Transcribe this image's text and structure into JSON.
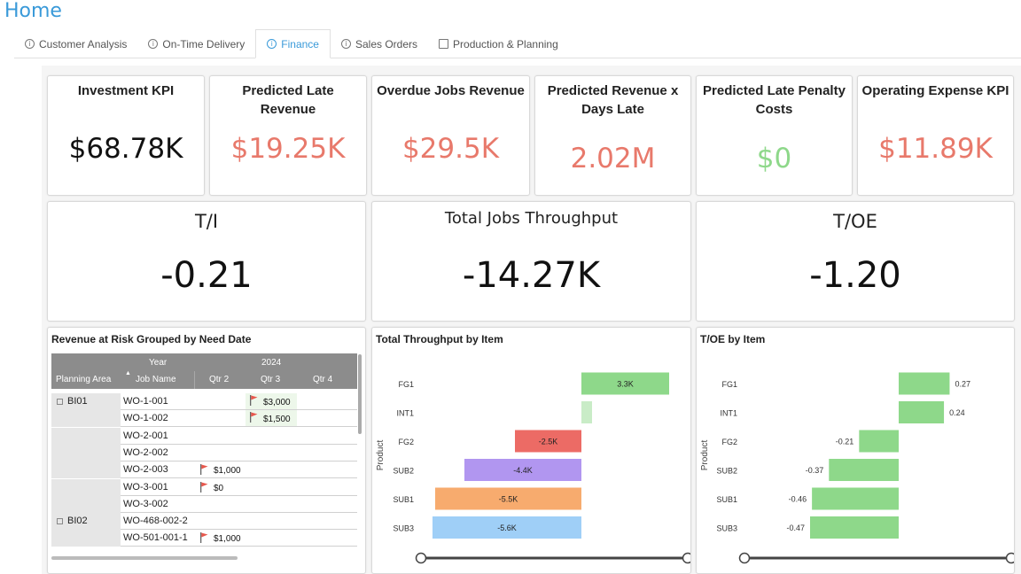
{
  "header": {
    "title": "Home"
  },
  "tabs": [
    {
      "label": "Customer Analysis",
      "icon": "info-icon",
      "active": false
    },
    {
      "label": "On-Time Delivery",
      "icon": "info-icon",
      "active": false
    },
    {
      "label": "Finance",
      "icon": "info-icon",
      "active": true
    },
    {
      "label": "Sales Orders",
      "icon": "info-icon",
      "active": false
    },
    {
      "label": "Production & Planning",
      "icon": "document-icon",
      "active": false
    }
  ],
  "kpis": {
    "investment": {
      "title": "Investment KPI",
      "value": "$68.78K",
      "color": "#111111"
    },
    "predicted_late_revenue": {
      "title": "Predicted Late Revenue",
      "value": "$19.25K",
      "color": "#e8796b"
    },
    "overdue_jobs_revenue": {
      "title": "Overdue Jobs Revenue",
      "value": "$29.5K",
      "color": "#e8796b"
    },
    "predicted_revenue_days_late": {
      "title": "Predicted Revenue x Days Late",
      "value": "2.02M",
      "color": "#e8796b"
    },
    "predicted_late_penalty": {
      "title": "Predicted Late Penalty Costs",
      "value": "$0",
      "color": "#8ed88a"
    },
    "operating_expense": {
      "title": "Operating Expense KPI",
      "value": "$11.89K",
      "color": "#e8796b"
    }
  },
  "big_kpis": {
    "ti": {
      "title": "T/I",
      "value": "-0.21"
    },
    "throughput": {
      "title": "Total Jobs Throughput",
      "value": "-14.27K"
    },
    "toe": {
      "title": "T/OE",
      "value": "-1.20"
    }
  },
  "matrix": {
    "title": "Revenue at Risk Grouped by Need Date",
    "headers": {
      "year_label": "Year",
      "year_value": "2024",
      "planning_area": "Planning Area",
      "job_name": "Job Name",
      "qtr2": "Qtr 2",
      "qtr3": "Qtr 3",
      "qtr4": "Qtr 4"
    },
    "groups": [
      {
        "area": "BI01",
        "expander": "⊟"
      },
      {
        "area": "BI02",
        "expander": "⊟"
      }
    ],
    "rows": [
      {
        "job": "WO-1-001",
        "q2": "",
        "q3": "$3,000",
        "q3_flag": true,
        "q2_flag": false
      },
      {
        "job": "WO-1-002",
        "q2": "",
        "q3": "$1,500",
        "q3_flag": true,
        "q2_flag": false
      },
      {
        "job": "WO-2-001",
        "q2": "",
        "q3": "",
        "q3_flag": false,
        "q2_flag": false
      },
      {
        "job": "WO-2-002",
        "q2": "",
        "q3": "",
        "q3_flag": false,
        "q2_flag": false
      },
      {
        "job": "WO-2-003",
        "q2": "$1,000",
        "q3": "",
        "q3_flag": false,
        "q2_flag": true
      },
      {
        "job": "WO-3-001",
        "q2": "$0",
        "q3": "",
        "q3_flag": false,
        "q2_flag": true
      },
      {
        "job": "WO-3-002",
        "q2": "",
        "q3": "",
        "q3_flag": false,
        "q2_flag": false
      },
      {
        "job": "WO-468-002-2",
        "q2": "",
        "q3": "",
        "q3_flag": false,
        "q2_flag": false
      },
      {
        "job": "WO-501-001-1",
        "q2": "$1,000",
        "q3": "",
        "q3_flag": false,
        "q2_flag": true
      }
    ]
  },
  "chart_data": [
    {
      "type": "bar",
      "orientation": "horizontal",
      "title": "Total Throughput by Item",
      "ylabel": "Product",
      "categories": [
        "FG1",
        "INT1",
        "FG2",
        "SUB2",
        "SUB1",
        "SUB3"
      ],
      "values": [
        3.3,
        0.4,
        -2.5,
        -4.4,
        -5.5,
        -5.6
      ],
      "labels": [
        "3.3K",
        "",
        "-2.5K",
        "-4.4K",
        "-5.5K",
        "-5.6K"
      ],
      "colors": [
        "#8ed88a",
        "#c9ecc7",
        "#ec6b65",
        "#b196f0",
        "#f7ab6e",
        "#9fcff7"
      ],
      "xlim": [
        -6,
        6
      ]
    },
    {
      "type": "bar",
      "orientation": "horizontal",
      "title": "T/OE by Item",
      "ylabel": "Product",
      "categories": [
        "FG1",
        "INT1",
        "FG2",
        "SUB2",
        "SUB1",
        "SUB3"
      ],
      "values": [
        0.27,
        0.24,
        -0.21,
        -0.37,
        -0.46,
        -0.47
      ],
      "labels": [
        "0.27",
        "0.24",
        "-0.21",
        "-0.37",
        "-0.46",
        "-0.47"
      ],
      "colors": [
        "#8ed88a",
        "#8ed88a",
        "#8ed88a",
        "#8ed88a",
        "#8ed88a",
        "#8ed88a"
      ],
      "xlim": [
        -0.5,
        0.5
      ]
    }
  ]
}
